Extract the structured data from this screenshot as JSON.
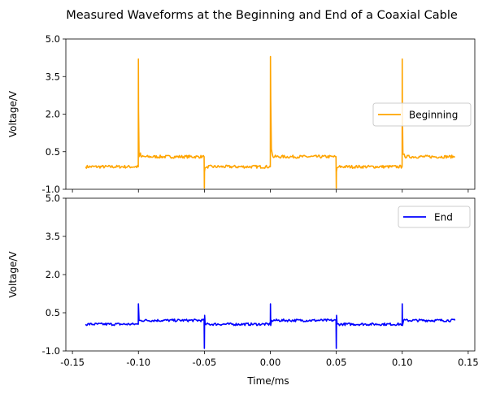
{
  "chart_data": {
    "type": "line",
    "title": "Measured Waveforms at the Beginning and End of a Coaxial Cable",
    "xlabel": "Time/ms",
    "xlim": [
      -0.155,
      0.155
    ],
    "xticks": [
      "-0.15",
      "-0.10",
      "-0.05",
      "0.00",
      "0.05",
      "0.10",
      "0.15"
    ],
    "xtick_values": [
      -0.15,
      -0.1,
      -0.05,
      0.0,
      0.05,
      0.1,
      0.15
    ],
    "shared_x": true,
    "panels": [
      {
        "ylabel": "Voltage/V",
        "ylim": [
          -1.0,
          5.0
        ],
        "yticks": [
          "-1.0",
          "0.5",
          "2.0",
          "3.5",
          "5.0"
        ],
        "ytick_values": [
          -1.0,
          0.5,
          2.0,
          3.5,
          5.0
        ],
        "legend_position": "center-right",
        "series": [
          {
            "name": "Beginning",
            "color": "#ffa500",
            "x": [
              -0.14,
              -0.1001,
              -0.1,
              -0.0999,
              -0.0995,
              -0.0985,
              -0.098,
              -0.0502,
              -0.05,
              -0.0499,
              -0.0495,
              -0.048,
              0.0,
              0.0001,
              0.0003,
              0.0008,
              0.0015,
              0.002,
              0.0498,
              0.05,
              0.0501,
              0.0505,
              0.052,
              0.0999,
              0.1,
              0.1001,
              0.1005,
              0.1015,
              0.102,
              0.14
            ],
            "y": [
              -0.1,
              -0.1,
              4.2,
              2.2,
              0.3,
              0.45,
              0.3,
              0.3,
              -0.95,
              -0.3,
              -0.15,
              -0.1,
              -0.1,
              4.3,
              2.6,
              0.6,
              0.4,
              0.3,
              0.3,
              -0.95,
              -0.3,
              -0.15,
              -0.1,
              -0.1,
              4.2,
              2.3,
              0.4,
              0.4,
              0.3,
              0.3
            ],
            "noise_amplitude": 0.06
          }
        ]
      },
      {
        "ylabel": "Voltage/V",
        "ylim": [
          -1.0,
          5.0
        ],
        "yticks": [
          "-1.0",
          "0.5",
          "2.0",
          "3.5",
          "5.0"
        ],
        "ytick_values": [
          -1.0,
          0.5,
          2.0,
          3.5,
          5.0
        ],
        "legend_position": "top-right",
        "series": [
          {
            "name": "End",
            "color": "#0000ff",
            "x": [
              -0.14,
              -0.1001,
              -0.1,
              -0.0995,
              -0.098,
              -0.0502,
              -0.05,
              -0.0498,
              -0.0494,
              0.0,
              0.0001,
              0.0003,
              0.001,
              0.0498,
              0.05,
              0.0502,
              0.0506,
              0.0999,
              0.1,
              0.1002,
              0.101,
              0.14
            ],
            "y": [
              0.05,
              0.05,
              0.85,
              0.2,
              0.2,
              0.2,
              -0.9,
              0.4,
              0.05,
              0.05,
              0.85,
              0.0,
              0.2,
              0.2,
              -0.9,
              0.4,
              0.05,
              0.05,
              0.85,
              0.0,
              0.2,
              0.2
            ],
            "noise_amplitude": 0.05
          }
        ]
      }
    ]
  }
}
